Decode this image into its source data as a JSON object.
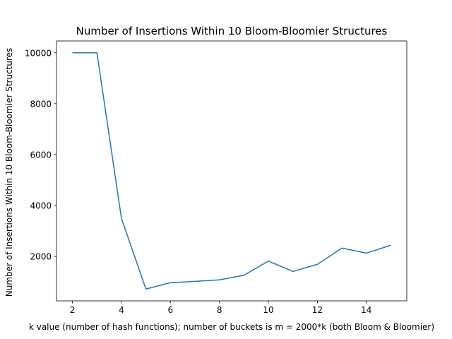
{
  "chart_data": {
    "type": "line",
    "title": "Number of Insertions Within 10 Bloom-Bloomier Structures",
    "xlabel": "k value (number of hash functions); number of buckets is m = 2000*k (both Bloom & Bloomier)",
    "ylabel": "Number of Insertions Within 10 Bloom-Bloomier Structures",
    "x": [
      2,
      3,
      4,
      5,
      6,
      7,
      8,
      9,
      10,
      11,
      12,
      13,
      14,
      15
    ],
    "series": [
      {
        "values": [
          10000,
          10000,
          3500,
          720,
          970,
          1020,
          1080,
          1260,
          1820,
          1410,
          1690,
          2330,
          2130,
          2440
        ],
        "color": "#1f77b4"
      }
    ],
    "xlim": [
      1.35,
      15.65
    ],
    "ylim": [
      255,
      10465
    ],
    "xticks": [
      "2",
      "4",
      "6",
      "8",
      "10",
      "12",
      "14"
    ],
    "yticks": [
      "2000",
      "4000",
      "6000",
      "8000",
      "10000"
    ],
    "grid": false,
    "legend": "none"
  }
}
